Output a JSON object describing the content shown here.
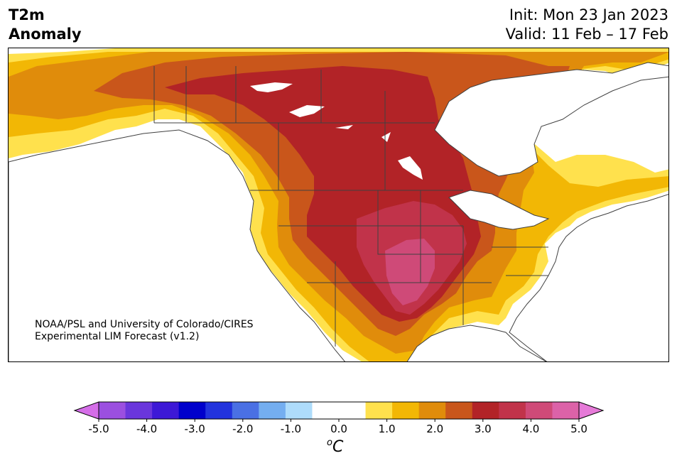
{
  "header": {
    "title_line1": "T2m",
    "title_line2": "Anomaly",
    "init_text": "Init: Mon 23 Jan 2023",
    "valid_text": "Valid: 11 Feb – 17 Feb"
  },
  "map": {
    "credit_line1": "NOAA/PSL and University of Colorado/CIRES",
    "credit_line2": "Experimental LIM Forecast (v1.2)",
    "border_color": "#404040",
    "anomaly_levels": [
      {
        "level": 0.5,
        "color": "#ffe14d"
      },
      {
        "level": 1.0,
        "color": "#f2b705"
      },
      {
        "level": 1.5,
        "color": "#e08c0b"
      },
      {
        "level": 2.0,
        "color": "#c9561b"
      },
      {
        "level": 2.5,
        "color": "#b22327"
      },
      {
        "level": 3.0,
        "color": "#c1334a"
      },
      {
        "level": 3.5,
        "color": "#cf4a78"
      }
    ]
  },
  "colorbar": {
    "ticks": [
      "-5.0",
      "-4.0",
      "-3.0",
      "-2.0",
      "-1.0",
      "0.0",
      "1.0",
      "2.0",
      "3.0",
      "4.0",
      "5.0"
    ],
    "unit_base": "C",
    "unit_sup": "o",
    "colors": [
      "#d56ee8",
      "#9b4fe0",
      "#6a36dc",
      "#3d18d6",
      "#0000cc",
      "#2233dd",
      "#4a70e4",
      "#74aef0",
      "#aedcfb",
      "#ffffff",
      "#ffffff",
      "#ffe14d",
      "#f2b705",
      "#e08c0b",
      "#c9561b",
      "#b22327",
      "#c1334a",
      "#cf4a78",
      "#dc62a8",
      "#e67ad8"
    ]
  }
}
